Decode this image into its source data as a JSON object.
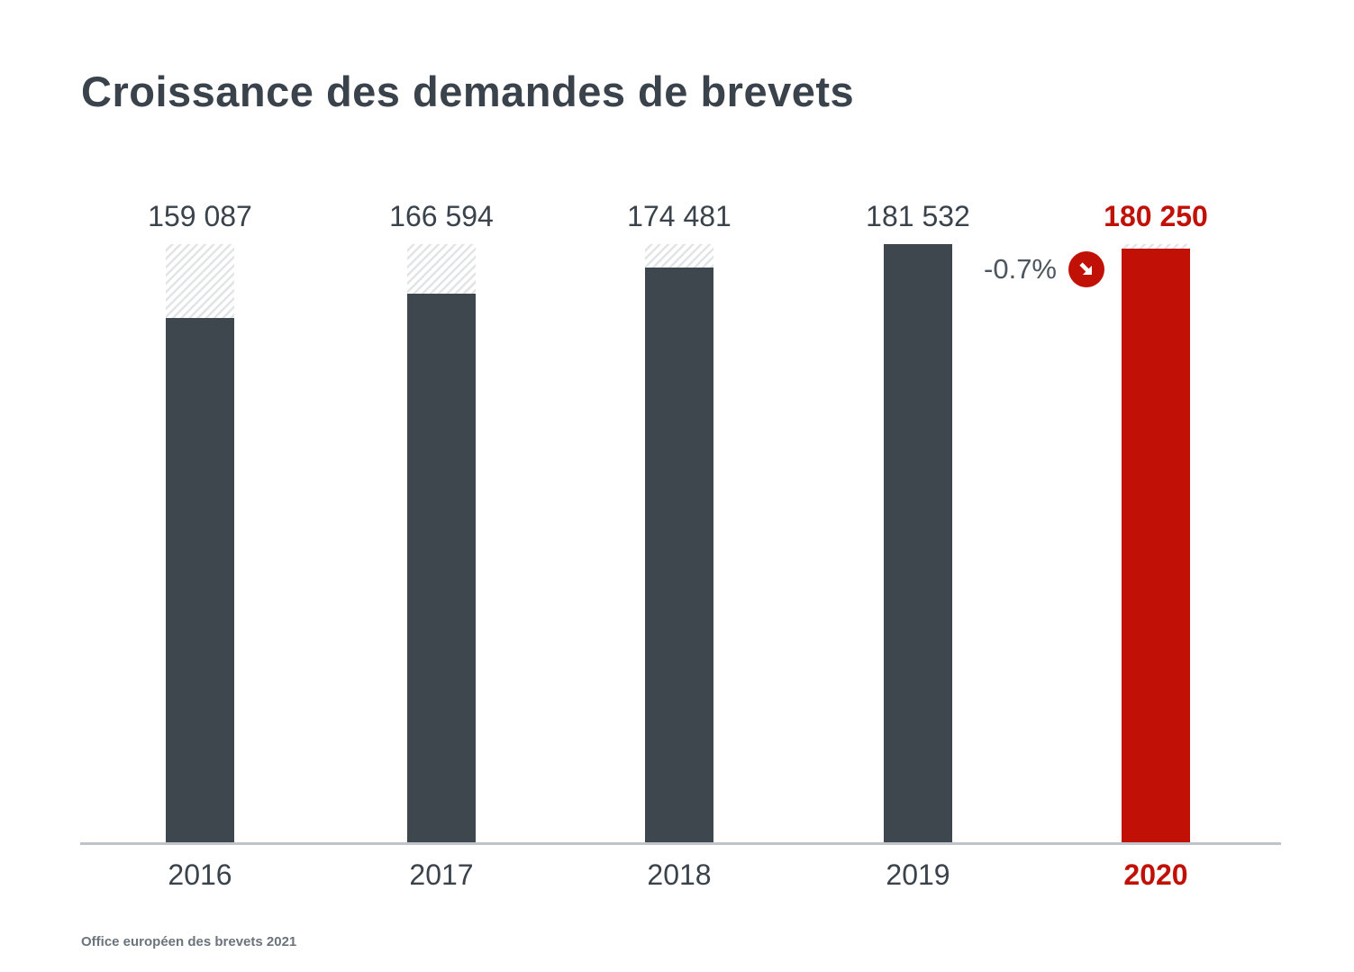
{
  "chart_data": {
    "type": "bar",
    "title": "Croissance des demandes de brevets",
    "categories": [
      "2016",
      "2017",
      "2018",
      "2019",
      "2020"
    ],
    "values": [
      159087,
      166594,
      174481,
      181532,
      180250
    ],
    "value_labels": [
      "159 087",
      "166 594",
      "174 481",
      "181 532",
      "180 250"
    ],
    "highlight_index": 4,
    "highlight_category": "2020",
    "ylim": [
      0,
      181532
    ],
    "grid": false,
    "legend": false,
    "ghost_hatch_to_max": true,
    "annotation": {
      "text": "-0.7%",
      "icon": "arrow-down-right-icon",
      "refers_to": "2020"
    },
    "source": "Office européen des brevets 2021"
  },
  "colors": {
    "bar_default": "#3e474e",
    "bar_highlight": "#c11006",
    "label_default": "#3a434b",
    "label_highlight": "#c11006",
    "annotation_text": "#4d565e",
    "annotation_badge": "#c11006",
    "axis_line": "#bfc4c8",
    "hatch_stripe": "#e2e5e7",
    "source_text": "#6b737b"
  }
}
